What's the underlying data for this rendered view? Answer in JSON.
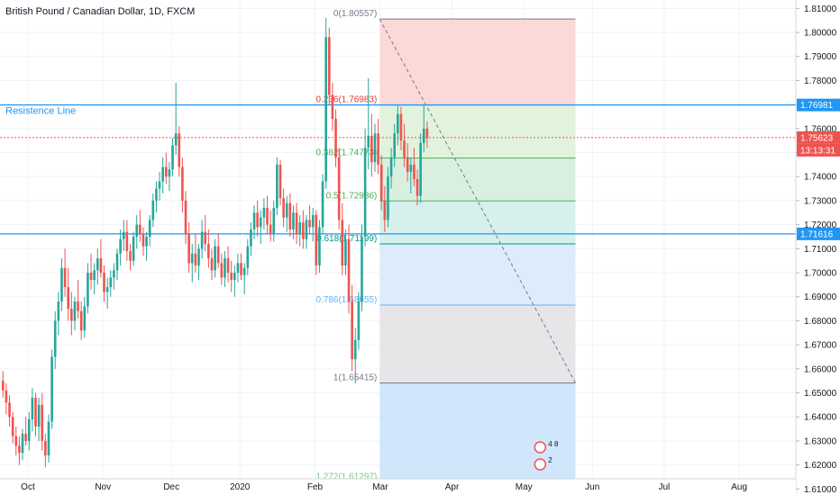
{
  "header": {
    "symbol_title": "British Pound / Canadian Dollar, 1D, FXCM"
  },
  "colors": {
    "up": "#26a69a",
    "down": "#ef5350",
    "hline": "#2196f3",
    "price_line": "#ef5350",
    "grid": "#f0f3fa",
    "axis_text": "#131722"
  },
  "horizontal_lines": [
    {
      "label": "Resistence Line",
      "price": 1.76981,
      "badge": "1.76981"
    },
    {
      "label": "",
      "price": 1.71616,
      "badge": "1.71616"
    }
  ],
  "current_price": {
    "price": 1.75623,
    "badge": "1.75623",
    "countdown": "13:13:31"
  },
  "fibonacci": {
    "levels": [
      {
        "label": "0(1.80557)",
        "price": 1.80557,
        "fill": "#fcd9d9",
        "line": "#787b86",
        "text": "#787b86"
      },
      {
        "label": "0.236(1.76983)",
        "price": 1.76983,
        "fill": "#e1f3dd",
        "line": "#e53935",
        "text": "#e53935"
      },
      {
        "label": "0.382(1.74773)",
        "price": 1.74773,
        "fill": "#d9f0e0",
        "line": "#4caf50",
        "text": "#4caf50"
      },
      {
        "label": "0.5(1.72986)",
        "price": 1.72986,
        "fill": "#d6f0ec",
        "line": "#4caf50",
        "text": "#4caf50"
      },
      {
        "label": "0.618(1.71199)",
        "price": 1.71199,
        "fill": "#dcecfb",
        "line": "#009688",
        "text": "#009688"
      },
      {
        "label": "0.786(1.68655)",
        "price": 1.68655,
        "fill": "#e6e6e8",
        "line": "#64b5f6",
        "text": "#64b5f6"
      },
      {
        "label": "1(1.65415)",
        "price": 1.65415,
        "fill": "#d0e6fb",
        "line": "#787b86",
        "text": "#787b86"
      },
      {
        "label": "1.272(1.61297)",
        "price": 1.61297,
        "fill": "#d0d2d8",
        "line": "#81c784",
        "text": "#81c784"
      }
    ]
  },
  "markers": {
    "top": "4 8",
    "bottom": "2"
  },
  "chart_data": {
    "type": "candlestick",
    "title": "British Pound / Canadian Dollar, 1D, FXCM",
    "y_ticks": [
      1.81,
      1.8,
      1.79,
      1.78,
      1.77,
      1.76,
      1.75,
      1.74,
      1.73,
      1.72,
      1.71,
      1.7,
      1.69,
      1.68,
      1.67,
      1.66,
      1.65,
      1.64,
      1.63,
      1.62,
      1.61
    ],
    "y_tick_labels": [
      "1.81000",
      "1.80000",
      "1.79000",
      "1.78000",
      "1.77000",
      "1.76000",
      "1.75000",
      "1.74000",
      "1.73000",
      "1.72000",
      "1.71000",
      "1.70000",
      "1.69000",
      "1.68000",
      "1.67000",
      "1.66000",
      "1.65000",
      "1.64000",
      "1.63000",
      "1.62000",
      "1.61000"
    ],
    "ylim": [
      1.6075,
      1.8135
    ],
    "x_ticks": [
      {
        "label": "Oct",
        "index": 8
      },
      {
        "label": "Nov",
        "index": 31
      },
      {
        "label": "Dec",
        "index": 52
      },
      {
        "label": "2020",
        "index": 73
      },
      {
        "label": "Feb",
        "index": 96
      },
      {
        "label": "Mar",
        "index": 116
      },
      {
        "label": "Apr",
        "index": 138
      },
      {
        "label": "May",
        "index": 160
      },
      {
        "label": "Jun",
        "index": 181
      },
      {
        "label": "Jul",
        "index": 203
      },
      {
        "label": "Aug",
        "index": 226
      }
    ],
    "x_count": 241,
    "fib_range_index": [
      115,
      175
    ],
    "trend_line": {
      "from": {
        "index": 115,
        "price": 1.80557
      },
      "to": {
        "index": 175,
        "price": 1.65415
      }
    },
    "candles": [
      [
        1.655,
        1.659,
        1.648,
        1.651
      ],
      [
        1.651,
        1.654,
        1.641,
        1.646
      ],
      [
        1.646,
        1.649,
        1.636,
        1.64
      ],
      [
        1.64,
        1.642,
        1.629,
        1.632
      ],
      [
        1.632,
        1.636,
        1.624,
        1.628
      ],
      [
        1.628,
        1.632,
        1.62,
        1.625
      ],
      [
        1.625,
        1.635,
        1.622,
        1.633
      ],
      [
        1.633,
        1.64,
        1.628,
        1.63
      ],
      [
        1.63,
        1.642,
        1.626,
        1.639
      ],
      [
        1.639,
        1.652,
        1.634,
        1.648
      ],
      [
        1.648,
        1.65,
        1.632,
        1.636
      ],
      [
        1.636,
        1.648,
        1.63,
        1.645
      ],
      [
        1.645,
        1.65,
        1.626,
        1.63
      ],
      [
        1.63,
        1.633,
        1.619,
        1.624
      ],
      [
        1.624,
        1.641,
        1.621,
        1.638
      ],
      [
        1.638,
        1.668,
        1.635,
        1.665
      ],
      [
        1.665,
        1.684,
        1.66,
        1.68
      ],
      [
        1.68,
        1.692,
        1.674,
        1.688
      ],
      [
        1.688,
        1.706,
        1.684,
        1.702
      ],
      [
        1.702,
        1.71,
        1.69,
        1.694
      ],
      [
        1.694,
        1.702,
        1.68,
        1.685
      ],
      [
        1.685,
        1.692,
        1.674,
        1.68
      ],
      [
        1.68,
        1.69,
        1.676,
        1.688
      ],
      [
        1.688,
        1.697,
        1.681,
        1.684
      ],
      [
        1.684,
        1.688,
        1.672,
        1.676
      ],
      [
        1.676,
        1.69,
        1.673,
        1.686
      ],
      [
        1.686,
        1.704,
        1.683,
        1.7
      ],
      [
        1.7,
        1.708,
        1.693,
        1.697
      ],
      [
        1.697,
        1.704,
        1.691,
        1.701
      ],
      [
        1.701,
        1.71,
        1.695,
        1.706
      ],
      [
        1.706,
        1.714,
        1.698,
        1.7
      ],
      [
        1.7,
        1.703,
        1.688,
        1.692
      ],
      [
        1.692,
        1.698,
        1.685,
        1.694
      ],
      [
        1.694,
        1.701,
        1.69,
        1.698
      ],
      [
        1.698,
        1.704,
        1.693,
        1.701
      ],
      [
        1.701,
        1.71,
        1.697,
        1.708
      ],
      [
        1.708,
        1.718,
        1.703,
        1.714
      ],
      [
        1.714,
        1.722,
        1.709,
        1.717
      ],
      [
        1.717,
        1.722,
        1.705,
        1.709
      ],
      [
        1.709,
        1.712,
        1.701,
        1.705
      ],
      [
        1.705,
        1.717,
        1.703,
        1.715
      ],
      [
        1.715,
        1.724,
        1.71,
        1.72
      ],
      [
        1.72,
        1.726,
        1.713,
        1.716
      ],
      [
        1.716,
        1.719,
        1.707,
        1.711
      ],
      [
        1.711,
        1.717,
        1.705,
        1.715
      ],
      [
        1.715,
        1.724,
        1.711,
        1.722
      ],
      [
        1.722,
        1.733,
        1.719,
        1.73
      ],
      [
        1.73,
        1.738,
        1.725,
        1.735
      ],
      [
        1.735,
        1.742,
        1.73,
        1.738
      ],
      [
        1.738,
        1.748,
        1.733,
        1.744
      ],
      [
        1.744,
        1.75,
        1.737,
        1.74
      ],
      [
        1.74,
        1.746,
        1.734,
        1.743
      ],
      [
        1.743,
        1.756,
        1.74,
        1.753
      ],
      [
        1.753,
        1.779,
        1.749,
        1.758
      ],
      [
        1.758,
        1.761,
        1.74,
        1.744
      ],
      [
        1.744,
        1.748,
        1.725,
        1.73
      ],
      [
        1.73,
        1.734,
        1.712,
        1.716
      ],
      [
        1.716,
        1.721,
        1.7,
        1.704
      ],
      [
        1.704,
        1.712,
        1.696,
        1.708
      ],
      [
        1.708,
        1.716,
        1.7,
        1.703
      ],
      [
        1.703,
        1.712,
        1.697,
        1.71
      ],
      [
        1.71,
        1.722,
        1.706,
        1.717
      ],
      [
        1.717,
        1.724,
        1.709,
        1.712
      ],
      [
        1.712,
        1.718,
        1.702,
        1.706
      ],
      [
        1.706,
        1.71,
        1.697,
        1.701
      ],
      [
        1.701,
        1.714,
        1.698,
        1.711
      ],
      [
        1.711,
        1.716,
        1.702,
        1.704
      ],
      [
        1.704,
        1.708,
        1.695,
        1.698
      ],
      [
        1.698,
        1.709,
        1.694,
        1.706
      ],
      [
        1.706,
        1.711,
        1.696,
        1.7
      ],
      [
        1.7,
        1.705,
        1.692,
        1.697
      ],
      [
        1.697,
        1.703,
        1.69,
        1.7
      ],
      [
        1.7,
        1.708,
        1.696,
        1.704
      ],
      [
        1.704,
        1.708,
        1.697,
        1.699
      ],
      [
        1.699,
        1.704,
        1.691,
        1.702
      ],
      [
        1.702,
        1.714,
        1.699,
        1.711
      ],
      [
        1.711,
        1.721,
        1.707,
        1.718
      ],
      [
        1.718,
        1.728,
        1.714,
        1.725
      ],
      [
        1.725,
        1.73,
        1.715,
        1.719
      ],
      [
        1.719,
        1.726,
        1.712,
        1.723
      ],
      [
        1.723,
        1.731,
        1.718,
        1.727
      ],
      [
        1.727,
        1.732,
        1.716,
        1.72
      ],
      [
        1.72,
        1.726,
        1.713,
        1.716
      ],
      [
        1.716,
        1.73,
        1.713,
        1.727
      ],
      [
        1.727,
        1.748,
        1.724,
        1.745
      ],
      [
        1.745,
        1.747,
        1.728,
        1.731
      ],
      [
        1.731,
        1.735,
        1.719,
        1.723
      ],
      [
        1.723,
        1.732,
        1.717,
        1.729
      ],
      [
        1.729,
        1.733,
        1.715,
        1.718
      ],
      [
        1.718,
        1.728,
        1.714,
        1.725
      ],
      [
        1.725,
        1.729,
        1.712,
        1.716
      ],
      [
        1.716,
        1.724,
        1.711,
        1.721
      ],
      [
        1.721,
        1.726,
        1.71,
        1.714
      ],
      [
        1.714,
        1.724,
        1.71,
        1.722
      ],
      [
        1.722,
        1.728,
        1.716,
        1.719
      ],
      [
        1.719,
        1.727,
        1.713,
        1.724
      ],
      [
        1.724,
        1.726,
        1.699,
        1.703
      ],
      [
        1.703,
        1.722,
        1.7,
        1.719
      ],
      [
        1.719,
        1.741,
        1.716,
        1.738
      ],
      [
        1.738,
        1.806,
        1.735,
        1.798
      ],
      [
        1.798,
        1.802,
        1.77,
        1.774
      ],
      [
        1.774,
        1.779,
        1.759,
        1.764
      ],
      [
        1.764,
        1.768,
        1.744,
        1.748
      ],
      [
        1.748,
        1.752,
        1.718,
        1.722
      ],
      [
        1.722,
        1.729,
        1.699,
        1.703
      ],
      [
        1.703,
        1.718,
        1.699,
        1.714
      ],
      [
        1.714,
        1.72,
        1.683,
        1.688
      ],
      [
        1.688,
        1.695,
        1.659,
        1.664
      ],
      [
        1.664,
        1.677,
        1.654,
        1.672
      ],
      [
        1.672,
        1.692,
        1.668,
        1.688
      ],
      [
        1.688,
        1.72,
        1.684,
        1.715
      ],
      [
        1.715,
        1.76,
        1.711,
        1.752
      ],
      [
        1.752,
        1.781,
        1.743,
        1.757
      ],
      [
        1.757,
        1.766,
        1.74,
        1.746
      ],
      [
        1.746,
        1.762,
        1.742,
        1.758
      ],
      [
        1.758,
        1.764,
        1.741,
        1.745
      ],
      [
        1.745,
        1.749,
        1.726,
        1.73
      ],
      [
        1.73,
        1.736,
        1.717,
        1.722
      ],
      [
        1.722,
        1.744,
        1.719,
        1.74
      ],
      [
        1.74,
        1.752,
        1.735,
        1.748
      ],
      [
        1.748,
        1.762,
        1.744,
        1.758
      ],
      [
        1.758,
        1.77,
        1.753,
        1.766
      ],
      [
        1.766,
        1.769,
        1.751,
        1.755
      ],
      [
        1.755,
        1.762,
        1.744,
        1.748
      ],
      [
        1.748,
        1.754,
        1.738,
        1.742
      ],
      [
        1.742,
        1.748,
        1.733,
        1.745
      ],
      [
        1.745,
        1.752,
        1.736,
        1.739
      ],
      [
        1.739,
        1.743,
        1.728,
        1.732
      ],
      [
        1.732,
        1.758,
        1.729,
        1.754
      ],
      [
        1.754,
        1.77,
        1.75,
        1.76
      ],
      [
        1.76,
        1.763,
        1.752,
        1.756
      ]
    ]
  }
}
